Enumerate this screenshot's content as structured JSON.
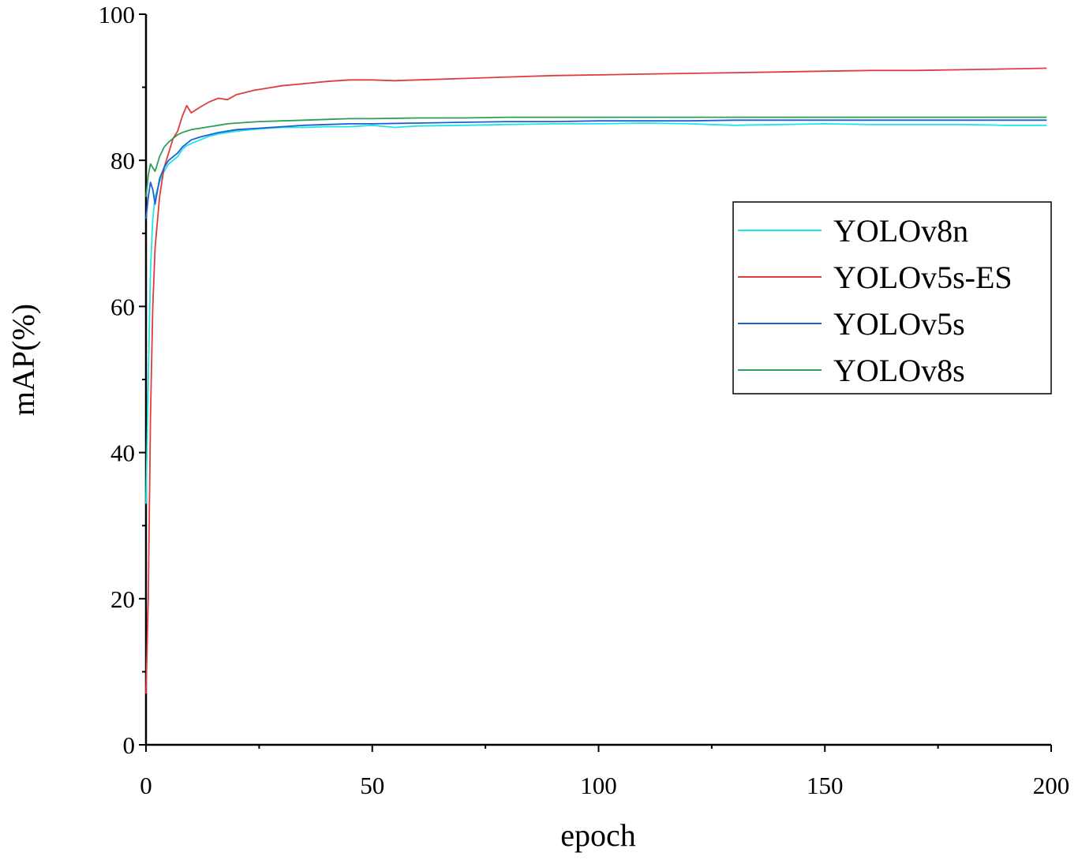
{
  "chart_data": {
    "type": "line",
    "xlabel": "epoch",
    "ylabel": "mAP(%)",
    "xlim": [
      0,
      200
    ],
    "ylim": [
      0,
      100
    ],
    "x_ticks": [
      0,
      50,
      100,
      150,
      200
    ],
    "y_ticks": [
      0,
      20,
      40,
      60,
      80,
      100
    ],
    "grid": false,
    "legend_position": "right",
    "series": [
      {
        "name": "YOLOv8n",
        "color": "#1ee6e6",
        "points": [
          [
            0,
            33
          ],
          [
            0.5,
            50
          ],
          [
            1,
            65
          ],
          [
            1.5,
            72
          ],
          [
            2,
            75
          ],
          [
            3,
            77
          ],
          [
            4,
            78.5
          ],
          [
            5,
            79.5
          ],
          [
            6,
            80
          ],
          [
            7,
            80.5
          ],
          [
            8,
            81.5
          ],
          [
            9,
            82
          ],
          [
            10,
            82.3
          ],
          [
            12,
            82.8
          ],
          [
            14,
            83.3
          ],
          [
            16,
            83.6
          ],
          [
            18,
            83.8
          ],
          [
            20,
            84
          ],
          [
            25,
            84.3
          ],
          [
            30,
            84.5
          ],
          [
            35,
            84.5
          ],
          [
            40,
            84.6
          ],
          [
            45,
            84.6
          ],
          [
            50,
            84.8
          ],
          [
            55,
            84.5
          ],
          [
            60,
            84.7
          ],
          [
            70,
            84.8
          ],
          [
            80,
            84.9
          ],
          [
            90,
            85
          ],
          [
            100,
            85
          ],
          [
            110,
            85.1
          ],
          [
            120,
            85
          ],
          [
            130,
            84.8
          ],
          [
            140,
            84.9
          ],
          [
            150,
            85
          ],
          [
            160,
            84.9
          ],
          [
            170,
            84.9
          ],
          [
            180,
            84.9
          ],
          [
            190,
            84.8
          ],
          [
            199,
            84.8
          ]
        ]
      },
      {
        "name": "YOLOv5s-ES",
        "color": "#e03c3c",
        "points": [
          [
            0,
            7
          ],
          [
            0.5,
            20
          ],
          [
            1,
            45
          ],
          [
            1.5,
            60
          ],
          [
            2,
            68
          ],
          [
            3,
            75
          ],
          [
            4,
            79
          ],
          [
            5,
            81
          ],
          [
            6,
            83
          ],
          [
            7,
            84
          ],
          [
            8,
            86
          ],
          [
            9,
            87.5
          ],
          [
            10,
            86.5
          ],
          [
            12,
            87.3
          ],
          [
            14,
            88
          ],
          [
            16,
            88.5
          ],
          [
            18,
            88.3
          ],
          [
            20,
            89
          ],
          [
            22,
            89.3
          ],
          [
            24,
            89.6
          ],
          [
            26,
            89.8
          ],
          [
            28,
            90
          ],
          [
            30,
            90.2
          ],
          [
            35,
            90.5
          ],
          [
            40,
            90.8
          ],
          [
            45,
            91
          ],
          [
            50,
            91
          ],
          [
            55,
            90.9
          ],
          [
            60,
            91
          ],
          [
            70,
            91.2
          ],
          [
            80,
            91.4
          ],
          [
            90,
            91.6
          ],
          [
            100,
            91.7
          ],
          [
            110,
            91.8
          ],
          [
            120,
            91.9
          ],
          [
            130,
            92
          ],
          [
            140,
            92.1
          ],
          [
            150,
            92.2
          ],
          [
            160,
            92.3
          ],
          [
            170,
            92.3
          ],
          [
            180,
            92.4
          ],
          [
            190,
            92.5
          ],
          [
            199,
            92.6
          ]
        ]
      },
      {
        "name": "YOLOv5s",
        "color": "#1f5fd6",
        "points": [
          [
            0,
            72
          ],
          [
            0.5,
            75
          ],
          [
            1,
            77
          ],
          [
            1.5,
            76
          ],
          [
            2,
            74
          ],
          [
            3,
            77.5
          ],
          [
            4,
            79
          ],
          [
            5,
            80
          ],
          [
            6,
            80.5
          ],
          [
            7,
            81
          ],
          [
            8,
            81.8
          ],
          [
            9,
            82.3
          ],
          [
            10,
            82.8
          ],
          [
            12,
            83.2
          ],
          [
            14,
            83.5
          ],
          [
            16,
            83.8
          ],
          [
            18,
            84
          ],
          [
            20,
            84.2
          ],
          [
            25,
            84.4
          ],
          [
            30,
            84.6
          ],
          [
            35,
            84.8
          ],
          [
            40,
            84.9
          ],
          [
            45,
            85
          ],
          [
            50,
            85
          ],
          [
            60,
            85.1
          ],
          [
            70,
            85.2
          ],
          [
            80,
            85.3
          ],
          [
            90,
            85.3
          ],
          [
            100,
            85.4
          ],
          [
            110,
            85.4
          ],
          [
            120,
            85.4
          ],
          [
            130,
            85.5
          ],
          [
            140,
            85.5
          ],
          [
            150,
            85.5
          ],
          [
            160,
            85.5
          ],
          [
            170,
            85.5
          ],
          [
            180,
            85.5
          ],
          [
            190,
            85.5
          ],
          [
            199,
            85.5
          ]
        ]
      },
      {
        "name": "YOLOv8s",
        "color": "#2e9e5a",
        "points": [
          [
            0,
            75
          ],
          [
            0.5,
            78
          ],
          [
            1,
            79.5
          ],
          [
            1.5,
            79
          ],
          [
            2,
            78.5
          ],
          [
            3,
            80.5
          ],
          [
            4,
            81.8
          ],
          [
            5,
            82.5
          ],
          [
            6,
            83
          ],
          [
            7,
            83.5
          ],
          [
            8,
            83.8
          ],
          [
            9,
            84
          ],
          [
            10,
            84.2
          ],
          [
            12,
            84.4
          ],
          [
            14,
            84.6
          ],
          [
            16,
            84.8
          ],
          [
            18,
            85
          ],
          [
            20,
            85.1
          ],
          [
            25,
            85.3
          ],
          [
            30,
            85.4
          ],
          [
            35,
            85.5
          ],
          [
            40,
            85.6
          ],
          [
            45,
            85.7
          ],
          [
            50,
            85.7
          ],
          [
            60,
            85.8
          ],
          [
            70,
            85.8
          ],
          [
            80,
            85.9
          ],
          [
            90,
            85.9
          ],
          [
            100,
            85.9
          ],
          [
            120,
            85.9
          ],
          [
            140,
            85.9
          ],
          [
            160,
            85.9
          ],
          [
            180,
            85.9
          ],
          [
            199,
            85.9
          ]
        ]
      }
    ]
  }
}
